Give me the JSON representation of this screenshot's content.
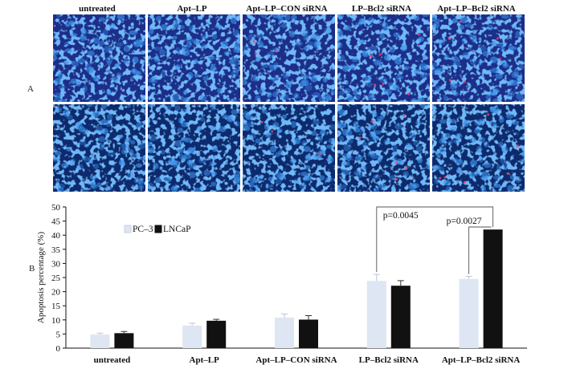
{
  "panel_labels": {
    "a": "A",
    "b": "B"
  },
  "micrographs": {
    "columns": [
      "untreated",
      "Apt–LP",
      "Apt–LP–CON siRNA",
      "LP–Bcl2 siRNA",
      "Apt–LP–Bcl2 siRNA"
    ],
    "rows": 2,
    "stain_colors": {
      "base": "#1a2d8a",
      "nucleus": "#3a8ee6",
      "apoptotic": "#ff3b5c"
    }
  },
  "chart_data": {
    "type": "bar",
    "categories": [
      "untreated",
      "Apt–LP",
      "Apt–LP–CON siRNA",
      "LP–Bcl2 siRNA",
      "Apt–LP–Bcl2 siRNA"
    ],
    "series": [
      {
        "name": "PC–3",
        "color": "#dde6f2",
        "values": [
          4.8,
          8.0,
          10.8,
          23.8,
          24.5
        ],
        "errors": [
          0.5,
          0.8,
          1.3,
          2.3,
          0.9
        ]
      },
      {
        "name": "LNCaP",
        "color": "#111111",
        "values": [
          5.3,
          9.7,
          10.1,
          22.1,
          42.0
        ],
        "errors": [
          0.6,
          0.5,
          1.4,
          1.8,
          0.0
        ]
      }
    ],
    "ylabel": "Apoptosis percentage (%)",
    "xlabel": "",
    "ylim": [
      0,
      50
    ],
    "yticks": [
      0,
      5,
      10,
      15,
      20,
      25,
      30,
      35,
      40,
      45,
      50
    ],
    "grid": false,
    "legend": "top-left",
    "annotations": [
      {
        "text": "p=0.0045",
        "from": "LP–Bcl2 siRNA / PC–3",
        "to": "Apt–LP–Bcl2 siRNA / LNCaP"
      },
      {
        "text": "p=0.0027",
        "from": "Apt–LP–Bcl2 siRNA / PC–3",
        "to": "Apt–LP–Bcl2 siRNA / LNCaP"
      }
    ]
  }
}
